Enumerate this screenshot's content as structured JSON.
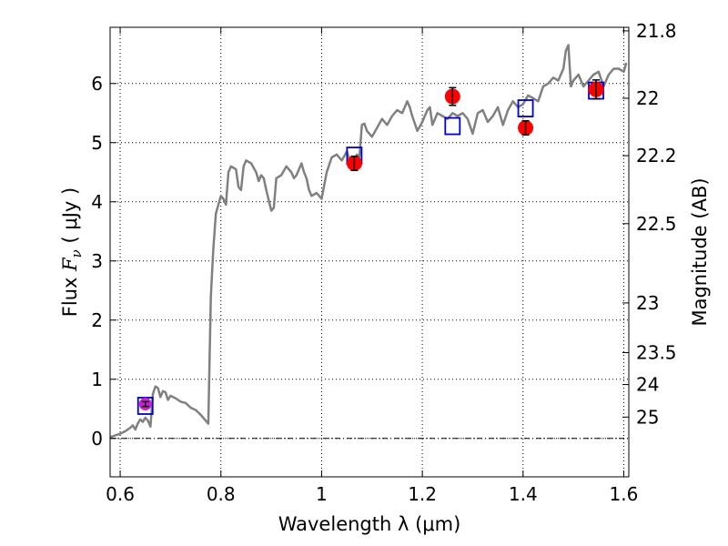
{
  "chart_data": {
    "type": "scatter",
    "xlabel": "Wavelength  λ (μm)",
    "ylabel": "Flux  F_ν  ( μJy )",
    "y2label": "Magnitude (AB)",
    "xlim": [
      0.58,
      1.61
    ],
    "ylim": [
      -0.65,
      6.95
    ],
    "grid": true,
    "x_ticks": [
      0.6,
      0.8,
      1.0,
      1.2,
      1.4,
      1.6
    ],
    "x_tick_labels": [
      "0.6",
      "0.8",
      "1",
      "1.2",
      "1.4",
      "1.6"
    ],
    "y_ticks": [
      0,
      1,
      2,
      3,
      4,
      5,
      6
    ],
    "y_tick_labels": [
      "0",
      "1",
      "2",
      "3",
      "4",
      "5",
      "6"
    ],
    "mag_ticks": [
      {
        "label": "21.8",
        "flux": 6.89
      },
      {
        "label": "22",
        "flux": 5.75
      },
      {
        "label": "22.2",
        "flux": 4.78
      },
      {
        "label": "22.5",
        "flux": 3.63
      },
      {
        "label": "23",
        "flux": 2.29
      },
      {
        "label": "23.5",
        "flux": 1.45
      },
      {
        "label": "24",
        "flux": 0.91
      },
      {
        "label": "25",
        "flux": 0.36
      }
    ],
    "series": [
      {
        "kind": "line",
        "color": "#808080",
        "x": [
          0.58,
          0.6,
          0.61,
          0.62,
          0.625,
          0.63,
          0.635,
          0.64,
          0.645,
          0.65,
          0.655,
          0.66,
          0.665,
          0.67,
          0.675,
          0.68,
          0.685,
          0.69,
          0.695,
          0.7,
          0.71,
          0.72,
          0.73,
          0.74,
          0.75,
          0.76,
          0.77,
          0.775,
          0.78,
          0.785,
          0.79,
          0.8,
          0.805,
          0.81,
          0.815,
          0.82,
          0.83,
          0.835,
          0.84,
          0.845,
          0.85,
          0.86,
          0.87,
          0.875,
          0.88,
          0.885,
          0.89,
          0.9,
          0.905,
          0.91,
          0.92,
          0.93,
          0.94,
          0.945,
          0.95,
          0.96,
          0.965,
          0.97,
          0.975,
          0.98,
          0.99,
          1.0,
          1.01,
          1.02,
          1.03,
          1.04,
          1.05,
          1.06,
          1.07,
          1.075,
          1.08,
          1.085,
          1.09,
          1.1,
          1.11,
          1.12,
          1.13,
          1.14,
          1.15,
          1.16,
          1.17,
          1.175,
          1.18,
          1.19,
          1.2,
          1.21,
          1.215,
          1.22,
          1.23,
          1.24,
          1.25,
          1.26,
          1.27,
          1.28,
          1.29,
          1.3,
          1.31,
          1.32,
          1.33,
          1.34,
          1.35,
          1.36,
          1.37,
          1.38,
          1.39,
          1.4,
          1.41,
          1.42,
          1.43,
          1.44,
          1.45,
          1.46,
          1.47,
          1.48,
          1.485,
          1.49,
          1.495,
          1.5,
          1.51,
          1.52,
          1.53,
          1.54,
          1.55,
          1.56,
          1.57,
          1.58,
          1.59,
          1.6,
          1.605
        ],
        "y": [
          0.02,
          0.08,
          0.12,
          0.18,
          0.22,
          0.15,
          0.25,
          0.32,
          0.28,
          0.35,
          0.3,
          0.2,
          0.75,
          0.88,
          0.85,
          0.7,
          0.8,
          0.78,
          0.65,
          0.72,
          0.68,
          0.62,
          0.6,
          0.52,
          0.48,
          0.4,
          0.3,
          0.25,
          2.4,
          3.2,
          3.8,
          4.1,
          4.05,
          3.95,
          4.5,
          4.6,
          4.55,
          4.25,
          4.2,
          4.6,
          4.7,
          4.65,
          4.5,
          4.35,
          4.45,
          4.4,
          4.2,
          3.85,
          3.9,
          4.4,
          4.45,
          4.6,
          4.5,
          4.4,
          4.45,
          4.65,
          4.5,
          4.4,
          4.2,
          4.1,
          4.15,
          4.05,
          4.5,
          4.75,
          4.8,
          4.7,
          4.85,
          4.6,
          4.8,
          4.75,
          5.3,
          5.32,
          5.2,
          5.1,
          5.25,
          5.4,
          5.3,
          5.45,
          5.55,
          5.5,
          5.7,
          5.6,
          5.45,
          5.2,
          5.35,
          5.55,
          5.6,
          5.3,
          5.5,
          5.45,
          5.4,
          5.5,
          5.45,
          5.5,
          5.4,
          5.15,
          5.5,
          5.55,
          5.35,
          5.45,
          5.6,
          5.3,
          5.55,
          5.7,
          5.6,
          5.65,
          5.8,
          5.75,
          5.7,
          5.95,
          6.0,
          6.1,
          6.05,
          6.25,
          6.55,
          6.65,
          5.95,
          6.05,
          6.15,
          5.95,
          6.05,
          6.15,
          6.2,
          5.95,
          6.15,
          6.25,
          6.25,
          6.2,
          6.35
        ]
      },
      {
        "kind": "points",
        "marker": "circle",
        "color": "#ff0000",
        "x": [
          0.65,
          1.065,
          1.26,
          1.405,
          1.545
        ],
        "y": [
          0.58,
          4.65,
          5.78,
          5.25,
          5.9
        ],
        "yerr": [
          0.04,
          0.12,
          0.15,
          0.12,
          0.16
        ]
      },
      {
        "kind": "points",
        "marker": "square",
        "color": "#0000cc",
        "x": [
          0.65,
          1.065,
          1.26,
          1.405,
          1.545
        ],
        "y": [
          0.55,
          4.78,
          5.28,
          5.58,
          5.88
        ]
      }
    ]
  }
}
